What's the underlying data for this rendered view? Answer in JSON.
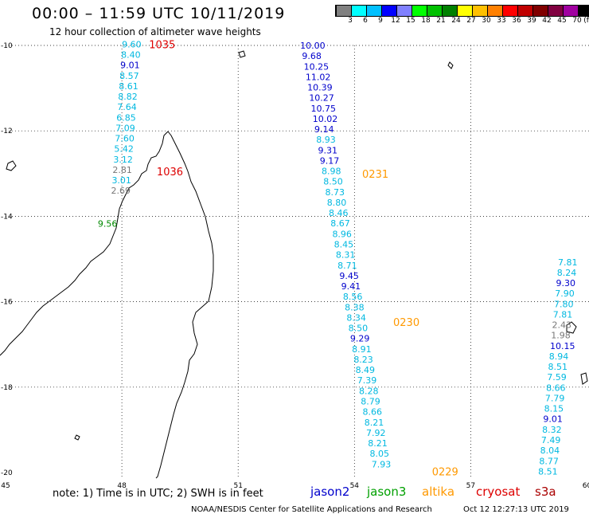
{
  "title": "00:00 – 11:59 UTC 10/11/2019",
  "subtitle": "12 hour collection of altimeter wave heights",
  "legend": {
    "colors": [
      "#808080",
      "#00ffff",
      "#00c0ff",
      "#0000ff",
      "#8080ff",
      "#00ff00",
      "#00c000",
      "#008000",
      "#ffff00",
      "#ffc000",
      "#ff8000",
      "#ff0000",
      "#c00000",
      "#800000",
      "#800040",
      "#a000a0",
      "#000000"
    ],
    "labels": [
      "3",
      "6",
      "9",
      "12",
      "15",
      "18",
      "21",
      "24",
      "27",
      "30",
      "33",
      "36",
      "39",
      "42",
      "45",
      "70",
      "(ft)"
    ]
  },
  "axes": {
    "lon_labels": [
      "45",
      "48",
      "51",
      "54",
      "57",
      "60"
    ],
    "lat_labels": [
      "-10",
      "-12",
      "-14",
      "-16",
      "-18",
      "-20"
    ]
  },
  "satellites": [
    {
      "name": "jason2",
      "color": "#0000cc"
    },
    {
      "name": "jason3",
      "color": "#00a000"
    },
    {
      "name": "altika",
      "color": "#ff9900"
    },
    {
      "name": "cryosat",
      "color": "#dd0000"
    },
    {
      "name": "s3a",
      "color": "#aa0000"
    }
  ],
  "note": "note: 1) Time is in UTC; 2) SWH is in feet",
  "credit": "NOAA/NESDIS Center for Satellite Applications and Research",
  "timestamp": "Oct 12 12:27:13 UTC 2019",
  "colors": {
    "cyan": "#00b8e0",
    "blue": "#0000cc",
    "gray": "#777777",
    "green": "#008800",
    "orange": "#ff9900",
    "red": "#dd0000"
  },
  "map_data": {
    "passes": [
      {
        "label": "1035",
        "lon": 48.7,
        "lat": -9.97,
        "color": "red"
      },
      {
        "label": "1036",
        "lon": 48.9,
        "lat": -12.95,
        "color": "red"
      },
      {
        "label": "0231",
        "lon": 54.2,
        "lat": -13.0,
        "color": "orange"
      },
      {
        "label": "0230",
        "lon": 55.0,
        "lat": -16.47,
        "color": "orange"
      },
      {
        "label": "0229",
        "lon": 56.0,
        "lat": -19.97,
        "color": "orange"
      }
    ],
    "tracks": [
      {
        "lon": 48.0,
        "lat_start": -9.97,
        "lat_step": -0.245,
        "values": [
          {
            "v": "9.60",
            "c": "cyan"
          },
          {
            "v": "8.40",
            "c": "cyan"
          },
          {
            "v": "9.01",
            "c": "blue"
          },
          {
            "v": "8.57",
            "c": "cyan"
          },
          {
            "v": "8.61",
            "c": "cyan"
          },
          {
            "v": "8.82",
            "c": "cyan"
          },
          {
            "v": "7.64",
            "c": "cyan"
          },
          {
            "v": "6.85",
            "c": "cyan"
          },
          {
            "v": "7.09",
            "c": "cyan"
          },
          {
            "v": "7.60",
            "c": "cyan"
          },
          {
            "v": "5.42",
            "c": "cyan"
          },
          {
            "v": "3.12",
            "c": "cyan"
          },
          {
            "v": "2.81",
            "c": "gray"
          },
          {
            "v": "3.01",
            "c": "cyan"
          },
          {
            "v": "2.69",
            "c": "gray"
          }
        ],
        "dlon": -0.02
      },
      {
        "lon": 47.38,
        "lat_start": -14.17,
        "lat_step": -0.245,
        "values": [
          {
            "v": "9.56",
            "c": "green"
          }
        ],
        "dlon": 0
      },
      {
        "lon": 52.6,
        "lat_start": -10.0,
        "lat_step": -0.245,
        "values": [
          {
            "v": "10.00",
            "c": "blue"
          },
          {
            "v": "9.68",
            "c": "blue"
          },
          {
            "v": "10.25",
            "c": "blue"
          },
          {
            "v": "11.02",
            "c": "blue"
          },
          {
            "v": "10.39",
            "c": "blue"
          },
          {
            "v": "10.27",
            "c": "blue"
          },
          {
            "v": "10.75",
            "c": "blue"
          },
          {
            "v": "10.02",
            "c": "blue"
          },
          {
            "v": "9.14",
            "c": "blue"
          },
          {
            "v": "8.93",
            "c": "cyan"
          },
          {
            "v": "9.31",
            "c": "blue"
          },
          {
            "v": "9.17",
            "c": "blue"
          },
          {
            "v": "8.98",
            "c": "cyan"
          },
          {
            "v": "8.50",
            "c": "cyan"
          },
          {
            "v": "8.73",
            "c": "cyan"
          },
          {
            "v": "8.80",
            "c": "cyan"
          },
          {
            "v": "8.46",
            "c": "cyan"
          },
          {
            "v": "8.67",
            "c": "cyan"
          },
          {
            "v": "8.96",
            "c": "cyan"
          },
          {
            "v": "8.45",
            "c": "cyan"
          },
          {
            "v": "8.31",
            "c": "cyan"
          },
          {
            "v": "8.71",
            "c": "cyan"
          },
          {
            "v": "9.45",
            "c": "blue"
          },
          {
            "v": "9.41",
            "c": "blue"
          },
          {
            "v": "8.56",
            "c": "cyan"
          },
          {
            "v": "8.38",
            "c": "cyan"
          },
          {
            "v": "8.34",
            "c": "cyan"
          },
          {
            "v": "8.50",
            "c": "cyan"
          },
          {
            "v": "9.29",
            "c": "blue"
          },
          {
            "v": "8.91",
            "c": "cyan"
          },
          {
            "v": "8.23",
            "c": "cyan"
          },
          {
            "v": "8.49",
            "c": "cyan"
          },
          {
            "v": "7.39",
            "c": "cyan"
          },
          {
            "v": "8.28",
            "c": "cyan"
          },
          {
            "v": "8.79",
            "c": "cyan"
          },
          {
            "v": "8.66",
            "c": "cyan"
          },
          {
            "v": "8.21",
            "c": "cyan"
          },
          {
            "v": "7.92",
            "c": "cyan"
          },
          {
            "v": "8.21",
            "c": "cyan"
          },
          {
            "v": "8.05",
            "c": "cyan"
          },
          {
            "v": "7.93",
            "c": "cyan"
          }
        ],
        "dlon": 0.046
      },
      {
        "lon": 59.25,
        "lat_start": -15.07,
        "lat_step": -0.245,
        "values": [
          {
            "v": "7.81",
            "c": "cyan"
          },
          {
            "v": "8.24",
            "c": "cyan"
          },
          {
            "v": "9.30",
            "c": "blue"
          },
          {
            "v": "7.90",
            "c": "cyan"
          },
          {
            "v": "7.80",
            "c": "cyan"
          },
          {
            "v": "7.81",
            "c": "cyan"
          },
          {
            "v": "2.43",
            "c": "gray"
          },
          {
            "v": "1.98",
            "c": "gray"
          },
          {
            "v": "10.15",
            "c": "blue"
          },
          {
            "v": "8.94",
            "c": "cyan"
          },
          {
            "v": "8.51",
            "c": "cyan"
          },
          {
            "v": "7.59",
            "c": "cyan"
          },
          {
            "v": "8.66",
            "c": "cyan"
          },
          {
            "v": "7.79",
            "c": "cyan"
          },
          {
            "v": "8.15",
            "c": "cyan"
          },
          {
            "v": "9.01",
            "c": "blue"
          },
          {
            "v": "8.32",
            "c": "cyan"
          },
          {
            "v": "7.49",
            "c": "cyan"
          },
          {
            "v": "8.04",
            "c": "cyan"
          },
          {
            "v": "8.77",
            "c": "cyan"
          },
          {
            "v": "8.51",
            "c": "cyan"
          }
        ],
        "dlon": -0.0255
      }
    ]
  }
}
